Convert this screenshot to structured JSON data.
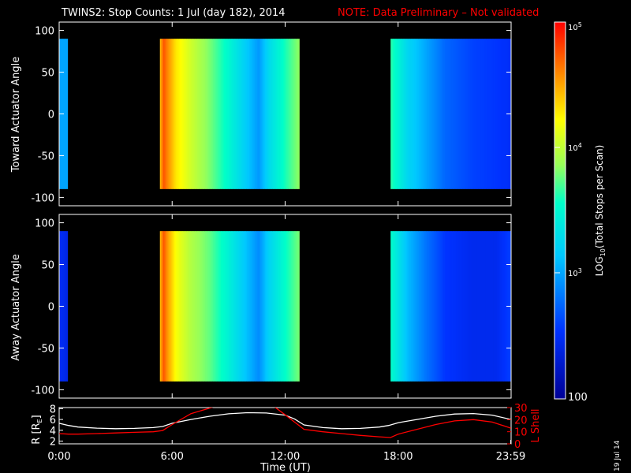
{
  "header": {
    "title": "TWINS2: Stop Counts:  1 Jul (day 182), 2014",
    "note": "NOTE: Data Preliminary – Not validated"
  },
  "stamp": "19 Jul 14",
  "colors": {
    "background": "#000000",
    "axes": "#ffffff",
    "note": "#ff0000",
    "r_line": "#ffffff",
    "lshell_line": "#ff0000"
  },
  "chart_data": [
    {
      "type": "heatmap",
      "name": "toward-panel",
      "ylabel": "Toward Actuator Angle",
      "xlim": [
        0,
        24
      ],
      "ylim": [
        -110,
        110
      ],
      "yticks": [
        100,
        50,
        0,
        -50,
        -100
      ],
      "data_angle_range": [
        -90,
        90
      ],
      "data_intervals_hours": [
        [
          0,
          0.45
        ],
        [
          5.35,
          12.75
        ],
        [
          17.6,
          24
        ]
      ],
      "value_scale": "log10",
      "profile": [
        {
          "h": 0.0,
          "v": 3.0
        },
        {
          "h": 0.45,
          "v": 3.0
        },
        {
          "h": 5.35,
          "v": 4.4
        },
        {
          "h": 5.55,
          "v": 4.75
        },
        {
          "h": 5.75,
          "v": 4.6
        },
        {
          "h": 6.2,
          "v": 4.3
        },
        {
          "h": 7.0,
          "v": 4.05
        },
        {
          "h": 8.0,
          "v": 3.8
        },
        {
          "h": 9.0,
          "v": 3.5
        },
        {
          "h": 10.0,
          "v": 3.15
        },
        {
          "h": 10.6,
          "v": 2.95
        },
        {
          "h": 11.2,
          "v": 3.3
        },
        {
          "h": 12.0,
          "v": 3.6
        },
        {
          "h": 12.75,
          "v": 3.85
        },
        {
          "h": 17.6,
          "v": 3.65
        },
        {
          "h": 18.5,
          "v": 3.25
        },
        {
          "h": 19.5,
          "v": 3.0
        },
        {
          "h": 20.5,
          "v": 2.75
        },
        {
          "h": 22.0,
          "v": 2.6
        },
        {
          "h": 23.2,
          "v": 2.55
        },
        {
          "h": 24.0,
          "v": 2.5
        }
      ],
      "bg_fill": "#000000"
    },
    {
      "type": "heatmap",
      "name": "away-panel",
      "ylabel": "Away Actuator Angle",
      "xlim": [
        0,
        24
      ],
      "ylim": [
        -110,
        110
      ],
      "yticks": [
        100,
        50,
        0,
        -50,
        -100
      ],
      "data_angle_range": [
        -90,
        90
      ],
      "data_intervals_hours": [
        [
          0,
          0.45
        ],
        [
          5.35,
          12.75
        ],
        [
          17.6,
          24
        ]
      ],
      "value_scale": "log10",
      "profile": [
        {
          "h": 0.0,
          "v": 2.5
        },
        {
          "h": 0.45,
          "v": 2.4
        },
        {
          "h": 5.35,
          "v": 4.4
        },
        {
          "h": 5.55,
          "v": 4.75
        },
        {
          "h": 5.75,
          "v": 4.55
        },
        {
          "h": 6.2,
          "v": 4.2
        },
        {
          "h": 7.0,
          "v": 3.95
        },
        {
          "h": 8.0,
          "v": 3.75
        },
        {
          "h": 9.0,
          "v": 3.45
        },
        {
          "h": 10.0,
          "v": 3.1
        },
        {
          "h": 10.6,
          "v": 2.9
        },
        {
          "h": 11.2,
          "v": 3.25
        },
        {
          "h": 12.0,
          "v": 3.55
        },
        {
          "h": 12.75,
          "v": 3.8
        },
        {
          "h": 17.6,
          "v": 3.55
        },
        {
          "h": 18.5,
          "v": 3.1
        },
        {
          "h": 19.5,
          "v": 2.8
        },
        {
          "h": 20.5,
          "v": 2.55
        },
        {
          "h": 22.0,
          "v": 2.45
        },
        {
          "h": 23.2,
          "v": 2.45
        },
        {
          "h": 24.0,
          "v": 2.6
        }
      ],
      "bg_fill": "#000000"
    },
    {
      "type": "line",
      "name": "orbit-panel",
      "xlabel": "Time (UT)",
      "xlim": [
        0,
        24
      ],
      "xticks": [
        "0:00",
        "6:00",
        "12:00",
        "18:00",
        "23:59"
      ],
      "xtick_values": [
        0,
        6,
        12,
        18,
        23.98
      ],
      "y_left": {
        "label": "R [R_E]",
        "ylim": [
          1.5,
          8.2
        ],
        "ticks": [
          2,
          4,
          6,
          8
        ]
      },
      "y_right": {
        "label": "L Shell",
        "ylim": [
          0,
          30
        ],
        "ticks": [
          0,
          10,
          20,
          30
        ]
      },
      "series": [
        {
          "name": "R [R_E]",
          "axis": "left",
          "x": [
            0,
            0.5,
            1,
            2,
            3,
            4,
            5,
            5.5,
            6,
            7,
            8,
            9,
            10,
            11,
            12,
            12.5,
            13,
            14,
            15,
            16,
            17,
            17.5,
            18,
            19,
            20,
            21,
            22,
            23,
            23.99
          ],
          "values": [
            5.3,
            4.9,
            4.6,
            4.4,
            4.3,
            4.35,
            4.5,
            4.7,
            5.3,
            6.0,
            6.6,
            7.05,
            7.25,
            7.2,
            6.8,
            6.1,
            5.0,
            4.5,
            4.3,
            4.35,
            4.6,
            4.9,
            5.4,
            6.0,
            6.6,
            7.0,
            7.1,
            6.8,
            6.0
          ]
        },
        {
          "name": "L Shell",
          "axis": "right",
          "x": [
            0,
            0.5,
            1,
            2,
            3,
            4,
            5,
            5.5,
            6,
            7,
            8.3,
            11.4,
            12,
            12.5,
            13,
            14,
            15,
            16,
            17,
            17.6,
            18,
            19,
            20,
            21,
            22,
            23,
            23.99
          ],
          "values": [
            8.5,
            8.0,
            8.0,
            8.5,
            9.0,
            9.5,
            10.0,
            11.0,
            16.0,
            25.0,
            31.0,
            31.0,
            24.0,
            18.0,
            12.0,
            10.0,
            8.5,
            7.0,
            5.8,
            5.2,
            8.0,
            12.0,
            16.0,
            19.0,
            20.0,
            18.0,
            13.0
          ]
        }
      ]
    },
    {
      "type": "heatmap",
      "name": "colorbar",
      "label": "LOG10(Total Stops per Scan)",
      "scale": "log",
      "range": [
        100,
        100000
      ],
      "tick_labels": [
        "10^5",
        "10^4",
        "10^3",
        "100"
      ],
      "tick_values": [
        100000,
        10000,
        1000,
        100
      ]
    }
  ],
  "labels": {
    "colorbar_top": "10",
    "colorbar_top_exp": "5",
    "colorbar_mid1": "10",
    "colorbar_mid1_exp": "4",
    "colorbar_mid2": "10",
    "colorbar_mid2_exp": "3",
    "colorbar_bottom": "100",
    "colorbar_axis": "LOG",
    "colorbar_axis_sub": "10",
    "colorbar_axis_rest": "(Total Stops per Scan)",
    "r_axis_main": "R [R",
    "r_axis_sub": "E",
    "r_axis_end": "]",
    "lshell_axis": "L Shell"
  }
}
